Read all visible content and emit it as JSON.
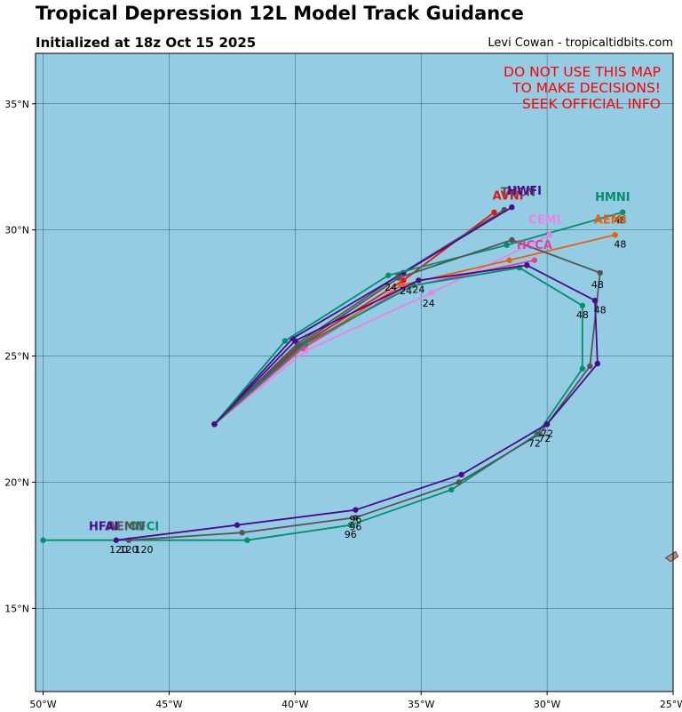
{
  "header": {
    "title": "Tropical Depression 12L Model Track Guidance",
    "subtitle": "Initialized at 18z Oct 15 2025",
    "credit": "Levi Cowan - tropicaltidbits.com"
  },
  "warning": [
    "DO NOT USE THIS MAP",
    "TO MAKE DECISIONS!",
    "SEEK OFFICIAL INFO"
  ],
  "colors": {
    "ocean": "#94cde3",
    "grid": "#3a5a6a",
    "warning": "#ff0000",
    "land": "#b89078"
  },
  "chart_data": {
    "type": "map-tracks",
    "lon_range": [
      -50.3,
      -25
    ],
    "lat_range": [
      11.7,
      37
    ],
    "lon_ticks": [
      -50,
      -45,
      -40,
      -35,
      -30,
      -25
    ],
    "lon_tick_labels": [
      "50°W",
      "45°W",
      "40°W",
      "35°W",
      "30°W",
      "25°W"
    ],
    "lat_ticks": [
      15,
      20,
      25,
      30,
      35
    ],
    "lat_tick_labels": [
      "15°N",
      "20°N",
      "25°N",
      "30°N",
      "35°N"
    ],
    "grid": true,
    "land": [
      {
        "name": "island",
        "points": [
          [
            -25.3,
            17.0
          ],
          [
            -24.9,
            17.25
          ],
          [
            -24.8,
            17.05
          ],
          [
            -25.1,
            16.85
          ]
        ]
      }
    ],
    "tracks": [
      {
        "name": "AVNI",
        "label": "AVNI",
        "color": "#e2150f",
        "label_pos": [
          -31.55,
          31.2
        ],
        "points": [
          [
            -43.2,
            22.3
          ],
          [
            -39.8,
            25.4
          ],
          [
            -35.7,
            28.0
          ],
          [
            -32.1,
            30.7
          ]
        ],
        "hour_labels": []
      },
      {
        "name": "TVCN",
        "label": "TVCN",
        "color": "#555555",
        "label_pos": [
          -31.15,
          31.35
        ],
        "points": [
          [
            -43.2,
            22.3
          ],
          [
            -39.9,
            25.5
          ],
          [
            -35.9,
            28.2
          ],
          [
            -31.7,
            30.8
          ]
        ],
        "hour_labels": []
      },
      {
        "name": "HWFI",
        "label": "HWFI",
        "color": "#4b0a8c",
        "label_pos": [
          -30.9,
          31.4
        ],
        "points": [
          [
            -43.2,
            22.3
          ],
          [
            -40.1,
            25.7
          ],
          [
            -35.7,
            28.3
          ],
          [
            -31.4,
            30.9
          ]
        ],
        "hour_labels": []
      },
      {
        "name": "HMNI",
        "label": "HMNI",
        "color": "#00906a",
        "label_pos": [
          -27.4,
          31.15
        ],
        "points": [
          [
            -43.2,
            22.3
          ],
          [
            -40.4,
            25.6
          ],
          [
            -36.3,
            28.2
          ],
          [
            -31.6,
            29.4
          ],
          [
            -27.0,
            30.7
          ]
        ],
        "hour_labels": [
          {
            "t": "48",
            "pos": [
              -27.1,
              30.25
            ]
          }
        ]
      },
      {
        "name": "CEMI",
        "label": "CEMI",
        "color": "#ef7fe8",
        "label_pos": [
          -30.1,
          30.25
        ],
        "points": [
          [
            -43.2,
            22.3
          ],
          [
            -39.6,
            25.2
          ],
          [
            -34.6,
            27.5
          ],
          [
            -29.9,
            29.8
          ]
        ],
        "hour_labels": [
          {
            "t": "24",
            "pos": [
              -34.7,
              26.95
            ]
          }
        ]
      },
      {
        "name": "AEMI",
        "label": "AEMI",
        "color": "#e8600f",
        "label_pos": [
          -27.5,
          30.25
        ],
        "points": [
          [
            -43.2,
            22.3
          ],
          [
            -39.6,
            25.4
          ],
          [
            -35.8,
            27.8
          ],
          [
            -31.5,
            28.8
          ],
          [
            -27.3,
            29.8
          ]
        ],
        "hour_labels": [
          {
            "t": "48",
            "pos": [
              -27.1,
              29.3
            ]
          }
        ]
      },
      {
        "name": "HCCA",
        "label": "HCCA",
        "color": "#d9449c",
        "label_pos": [
          -30.5,
          29.25
        ],
        "points": [
          [
            -43.2,
            22.3
          ],
          [
            -39.7,
            25.3
          ],
          [
            -35.7,
            27.7
          ],
          [
            -30.5,
            28.8
          ]
        ],
        "hour_labels": []
      },
      {
        "name": "OFCI",
        "label": "OFCI",
        "color": "#00906a",
        "label_pos": [
          -46.0,
          18.1
        ],
        "points": [
          [
            -43.2,
            22.3
          ],
          [
            -39.6,
            25.5
          ],
          [
            -35.3,
            27.8
          ],
          [
            -31.1,
            28.5
          ],
          [
            -28.6,
            27.0
          ],
          [
            -28.6,
            24.5
          ],
          [
            -30.4,
            21.9
          ],
          [
            -33.8,
            19.7
          ],
          [
            -37.8,
            18.3
          ],
          [
            -41.9,
            17.7
          ],
          [
            -50.0,
            17.7
          ]
        ],
        "hour_labels": [
          {
            "t": "24",
            "pos": [
              -35.6,
              27.45
            ]
          },
          {
            "t": "48",
            "pos": [
              -28.6,
              26.5
            ]
          },
          {
            "t": "72",
            "pos": [
              -30.5,
              21.4
            ]
          },
          {
            "t": "96",
            "pos": [
              -37.8,
              17.8
            ]
          },
          {
            "t": "120",
            "pos": [
              -46.0,
              17.2
            ]
          }
        ]
      },
      {
        "name": "AEMN",
        "label": "AEMN",
        "color": "#555555",
        "label_pos": [
          -46.7,
          18.1
        ],
        "points": [
          [
            -43.2,
            22.3
          ],
          [
            -39.9,
            25.4
          ],
          [
            -35.9,
            28.1
          ],
          [
            -31.4,
            29.6
          ],
          [
            -27.9,
            28.3
          ],
          [
            -28.3,
            24.6
          ],
          [
            -30.3,
            21.9
          ],
          [
            -33.5,
            20.0
          ],
          [
            -37.6,
            18.6
          ],
          [
            -42.1,
            18.0
          ],
          [
            -46.6,
            17.7
          ]
        ],
        "hour_labels": [
          {
            "t": "24",
            "pos": [
              -36.2,
              27.6
            ]
          },
          {
            "t": "48",
            "pos": [
              -28.0,
              27.7
            ]
          },
          {
            "t": "72",
            "pos": [
              -30.1,
              21.6
            ]
          },
          {
            "t": "96",
            "pos": [
              -37.6,
              18.1
            ]
          },
          {
            "t": "120",
            "pos": [
              -46.6,
              17.2
            ]
          }
        ]
      },
      {
        "name": "HFAI",
        "label": "HFAI",
        "color": "#4b0a8c",
        "label_pos": [
          -47.6,
          18.1
        ],
        "points": [
          [
            -43.2,
            22.3
          ],
          [
            -40.0,
            25.6
          ],
          [
            -35.1,
            28.0
          ],
          [
            -30.8,
            28.6
          ],
          [
            -28.1,
            27.2
          ],
          [
            -28.0,
            24.7
          ],
          [
            -30.0,
            22.3
          ],
          [
            -33.4,
            20.3
          ],
          [
            -37.6,
            18.9
          ],
          [
            -42.3,
            18.3
          ],
          [
            -47.1,
            17.7
          ]
        ],
        "hour_labels": [
          {
            "t": "24",
            "pos": [
              -35.1,
              27.5
            ]
          },
          {
            "t": "48",
            "pos": [
              -27.9,
              26.7
            ]
          },
          {
            "t": "72",
            "pos": [
              -30.0,
              21.8
            ]
          },
          {
            "t": "96",
            "pos": [
              -37.6,
              18.4
            ]
          },
          {
            "t": "120",
            "pos": [
              -47.0,
              17.2
            ]
          }
        ]
      }
    ]
  }
}
